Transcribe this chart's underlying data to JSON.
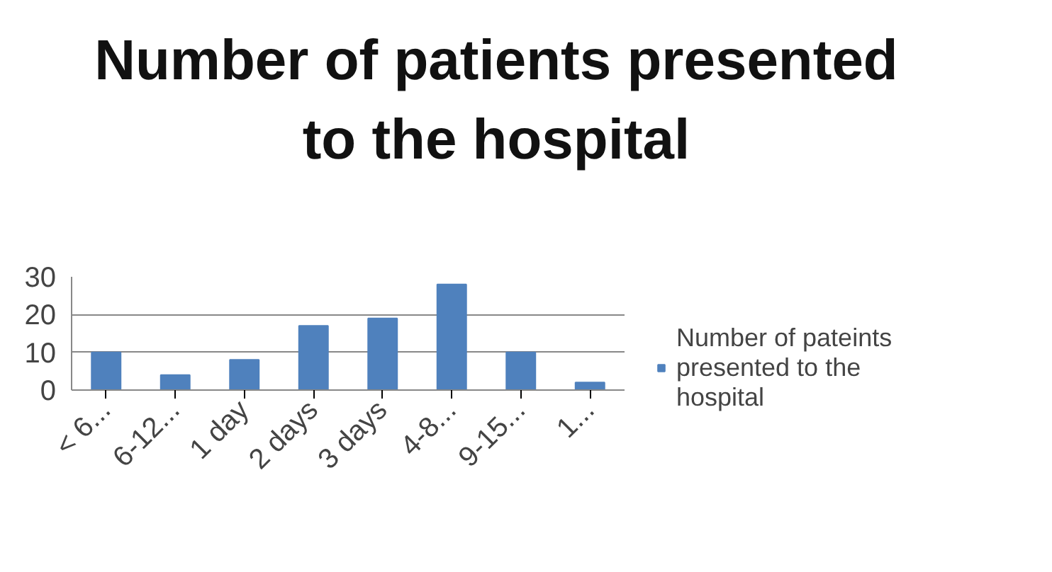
{
  "chart_data": {
    "type": "bar",
    "title": "Number of patients presented to the hospital",
    "categories": [
      "< 6...",
      "6-12...",
      "1 day",
      "2 days",
      "3 days",
      "4-8...",
      "9-15...",
      "1..."
    ],
    "series": [
      {
        "name": "Number of pateints presented to the hospital",
        "color": "#4f81bd",
        "values": [
          10,
          4,
          8,
          17,
          19,
          28,
          10,
          2
        ]
      }
    ],
    "ylim": [
      0,
      30
    ],
    "yticks": [
      0,
      10,
      20,
      30
    ],
    "grid": "y",
    "legend": "right"
  }
}
